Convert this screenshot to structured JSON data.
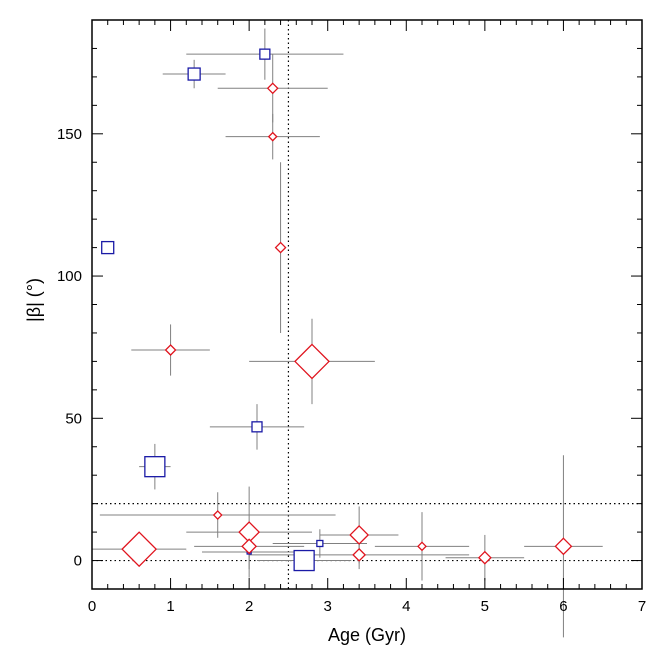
{
  "chart_data": {
    "type": "scatter",
    "title": "",
    "xlabel": "Age  (Gyr)",
    "ylabel": "|β|  (°)",
    "xlim": [
      0,
      7
    ],
    "ylim": [
      -10,
      190
    ],
    "xticks": [
      "0",
      "1",
      "2",
      "3",
      "4",
      "5",
      "6",
      "7"
    ],
    "yticks": [
      "0",
      "50",
      "100",
      "150"
    ],
    "reference_lines": {
      "vertical_x": 2.5,
      "horizontal_y": [
        0,
        20
      ]
    },
    "grid": false,
    "legend": "none",
    "colors": {
      "squares": "#1a1aa6",
      "diamonds": "#e0141e",
      "errorbars": "#808080"
    },
    "series": [
      {
        "marker": "square",
        "points": [
          {
            "x": 0.2,
            "y": 110,
            "xerr": 0,
            "yerr": 0,
            "size": 6
          },
          {
            "x": 1.3,
            "y": 171,
            "xerr": 0.4,
            "yerr": 5,
            "size": 6
          },
          {
            "x": 2.2,
            "y": 178,
            "xerr": 1.0,
            "yerr": 9,
            "size": 5
          },
          {
            "x": 2.1,
            "y": 47,
            "xerr": 0.6,
            "yerr": 8,
            "size": 5
          },
          {
            "x": 0.8,
            "y": 33,
            "xerr": 0.2,
            "yerr": 8,
            "size": 10
          },
          {
            "x": 2.9,
            "y": 6,
            "xerr": 0.6,
            "yerr": 5,
            "size": 3
          },
          {
            "x": 2.0,
            "y": 3,
            "xerr": 0.6,
            "yerr": 2,
            "size": 2
          },
          {
            "x": 2.7,
            "y": 0,
            "xerr": 0.6,
            "yerr": 2,
            "size": 10
          }
        ]
      },
      {
        "marker": "diamond",
        "points": [
          {
            "x": 2.3,
            "y": 166,
            "xerr": 0.7,
            "yerr": 12,
            "size": 5
          },
          {
            "x": 2.3,
            "y": 149,
            "xerr": 0.6,
            "yerr": 8,
            "size": 4
          },
          {
            "x": 2.4,
            "y": 110,
            "xerr": 0,
            "yerr": 30,
            "size": 5
          },
          {
            "x": 1.0,
            "y": 74,
            "xerr": 0.5,
            "yerr": 9,
            "size": 5
          },
          {
            "x": 2.8,
            "y": 70,
            "xerr": 0.8,
            "yerr": 15,
            "size": 17
          },
          {
            "x": 1.6,
            "y": 16,
            "xerr": 1.5,
            "yerr": 8,
            "size": 4
          },
          {
            "x": 2.0,
            "y": 10,
            "xerr": 0.8,
            "yerr": 16,
            "size": 10
          },
          {
            "x": 2.0,
            "y": 5,
            "xerr": 0.7,
            "yerr": 8,
            "size": 7
          },
          {
            "x": 0.6,
            "y": 4,
            "xerr": 0.6,
            "yerr": 0,
            "size": 17
          },
          {
            "x": 3.4,
            "y": 9,
            "xerr": 0.5,
            "yerr": 10,
            "size": 9
          },
          {
            "x": 3.4,
            "y": 2,
            "xerr": 1.4,
            "yerr": 5,
            "size": 6
          },
          {
            "x": 4.2,
            "y": 5,
            "xerr": 0.6,
            "yerr": 12,
            "size": 4
          },
          {
            "x": 5.0,
            "y": 1,
            "xerr": 0.5,
            "yerr": 8,
            "size": 6
          },
          {
            "x": 6.0,
            "y": 5,
            "xerr": 0.5,
            "yerr": 32,
            "size": 8
          }
        ]
      }
    ]
  }
}
